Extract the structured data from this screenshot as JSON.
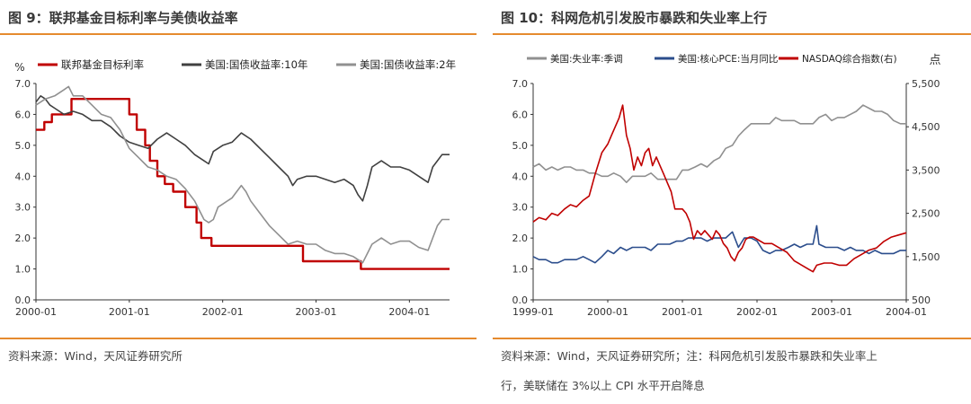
{
  "left": {
    "fig_title": "图 9：联邦基金目标利率与美债收益率",
    "source": "资料来源：Wind，天风证券研究所"
  },
  "right": {
    "fig_title": "图 10：科网危机引发股市暴跌和失业率上行",
    "source_line1": "资料来源：Wind，天风证券研究所；注：科网危机引发股市暴跌和失业率上",
    "source_line2": "行，美联储在 3%以上 CPI 水平开启降息"
  },
  "chart_data": [
    {
      "type": "line",
      "ylabel": "%",
      "ylim": [
        0,
        7
      ],
      "yticks": [
        "0.0",
        "1.0",
        "2.0",
        "3.0",
        "4.0",
        "5.0",
        "6.0",
        "7.0"
      ],
      "xlim": [
        2000.0,
        2004.43
      ],
      "xticks": [
        {
          "x": 2000,
          "label": "2000-01"
        },
        {
          "x": 2001,
          "label": "2001-01"
        },
        {
          "x": 2002,
          "label": "2002-01"
        },
        {
          "x": 2003,
          "label": "2003-01"
        },
        {
          "x": 2004,
          "label": "2004-01"
        }
      ],
      "legend_position": "top",
      "series": [
        {
          "name": "联邦基金目标利率",
          "color": "#c00000",
          "step": true,
          "x": [
            2000.0,
            2000.09,
            2000.17,
            2000.3,
            2000.38,
            2001.0,
            2001.08,
            2001.17,
            2001.22,
            2001.3,
            2001.38,
            2001.47,
            2001.6,
            2001.72,
            2001.77,
            2001.84,
            2001.88,
            2001.95,
            2002.86,
            2003.48,
            2004.43
          ],
          "y": [
            5.5,
            5.75,
            6.0,
            6.0,
            6.5,
            6.0,
            5.5,
            5.0,
            4.5,
            4.0,
            3.75,
            3.5,
            3.0,
            2.5,
            2.0,
            2.0,
            1.75,
            1.75,
            1.25,
            1.0,
            1.0
          ]
        },
        {
          "name": "美国:国债收益率:10年",
          "color": "#404040",
          "x": [
            2000.0,
            2000.05,
            2000.1,
            2000.15,
            2000.2,
            2000.3,
            2000.4,
            2000.5,
            2000.6,
            2000.7,
            2000.8,
            2000.9,
            2001.0,
            2001.1,
            2001.2,
            2001.3,
            2001.4,
            2001.5,
            2001.6,
            2001.7,
            2001.8,
            2001.85,
            2001.9,
            2002.0,
            2002.1,
            2002.2,
            2002.3,
            2002.4,
            2002.5,
            2002.6,
            2002.7,
            2002.75,
            2002.8,
            2002.9,
            2003.0,
            2003.1,
            2003.2,
            2003.3,
            2003.4,
            2003.45,
            2003.5,
            2003.55,
            2003.6,
            2003.7,
            2003.8,
            2003.9,
            2004.0,
            2004.1,
            2004.2,
            2004.25,
            2004.3,
            2004.35,
            2004.43
          ],
          "y": [
            6.4,
            6.6,
            6.5,
            6.3,
            6.2,
            6.0,
            6.1,
            6.0,
            5.8,
            5.8,
            5.6,
            5.3,
            5.1,
            5.0,
            4.9,
            5.2,
            5.4,
            5.2,
            5.0,
            4.7,
            4.5,
            4.4,
            4.8,
            5.0,
            5.1,
            5.4,
            5.2,
            4.9,
            4.6,
            4.3,
            4.0,
            3.7,
            3.9,
            4.0,
            4.0,
            3.9,
            3.8,
            3.9,
            3.7,
            3.4,
            3.2,
            3.7,
            4.3,
            4.5,
            4.3,
            4.3,
            4.2,
            4.0,
            3.8,
            4.3,
            4.5,
            4.7,
            4.7
          ]
        },
        {
          "name": "美国:国债收益率:2年",
          "color": "#909090",
          "x": [
            2000.0,
            2000.1,
            2000.2,
            2000.3,
            2000.35,
            2000.4,
            2000.5,
            2000.6,
            2000.7,
            2000.8,
            2000.9,
            2001.0,
            2001.1,
            2001.2,
            2001.3,
            2001.4,
            2001.5,
            2001.6,
            2001.7,
            2001.8,
            2001.85,
            2001.9,
            2001.95,
            2002.0,
            2002.1,
            2002.2,
            2002.25,
            2002.3,
            2002.4,
            2002.5,
            2002.6,
            2002.7,
            2002.8,
            2002.9,
            2003.0,
            2003.1,
            2003.2,
            2003.3,
            2003.4,
            2003.5,
            2003.55,
            2003.6,
            2003.7,
            2003.8,
            2003.9,
            2004.0,
            2004.1,
            2004.2,
            2004.25,
            2004.3,
            2004.35,
            2004.43
          ],
          "y": [
            6.3,
            6.5,
            6.6,
            6.8,
            6.9,
            6.6,
            6.6,
            6.3,
            6.0,
            5.9,
            5.5,
            4.9,
            4.6,
            4.3,
            4.2,
            4.0,
            3.9,
            3.6,
            3.2,
            2.6,
            2.5,
            2.6,
            3.0,
            3.1,
            3.3,
            3.7,
            3.5,
            3.2,
            2.8,
            2.4,
            2.1,
            1.8,
            1.9,
            1.8,
            1.8,
            1.6,
            1.5,
            1.5,
            1.4,
            1.2,
            1.5,
            1.8,
            2.0,
            1.8,
            1.9,
            1.9,
            1.7,
            1.6,
            2.0,
            2.4,
            2.6,
            2.6
          ]
        }
      ]
    },
    {
      "type": "line",
      "ylabel": "",
      "y2label": "点",
      "ylim": [
        0,
        7
      ],
      "yticks": [
        "0.0",
        "1.0",
        "2.0",
        "3.0",
        "4.0",
        "5.0",
        "6.0",
        "7.0"
      ],
      "y2lim": [
        500,
        5500
      ],
      "y2ticks": [
        "500",
        "1,500",
        "2,500",
        "3,500",
        "4,500",
        "5,500"
      ],
      "xlim": [
        1999.0,
        2004.0
      ],
      "xticks": [
        {
          "x": 1999,
          "label": "1999-01"
        },
        {
          "x": 2000,
          "label": "2000-01"
        },
        {
          "x": 2001,
          "label": "2001-01"
        },
        {
          "x": 2002,
          "label": "2002-01"
        },
        {
          "x": 2003,
          "label": "2003-01"
        },
        {
          "x": 2004,
          "label": "2004-01"
        }
      ],
      "legend_position": "top",
      "series": [
        {
          "name": "美国:失业率:季调",
          "color": "#909090",
          "axis": "left",
          "x": [
            1999.0,
            1999.08,
            1999.17,
            1999.25,
            1999.33,
            1999.42,
            1999.5,
            1999.58,
            1999.67,
            1999.75,
            1999.83,
            1999.92,
            2000.0,
            2000.08,
            2000.17,
            2000.25,
            2000.33,
            2000.42,
            2000.5,
            2000.58,
            2000.67,
            2000.75,
            2000.83,
            2000.92,
            2001.0,
            2001.08,
            2001.17,
            2001.25,
            2001.33,
            2001.42,
            2001.5,
            2001.58,
            2001.67,
            2001.75,
            2001.83,
            2001.92,
            2002.0,
            2002.08,
            2002.17,
            2002.25,
            2002.33,
            2002.42,
            2002.5,
            2002.58,
            2002.67,
            2002.75,
            2002.83,
            2002.92,
            2003.0,
            2003.08,
            2003.17,
            2003.25,
            2003.33,
            2003.42,
            2003.5,
            2003.58,
            2003.67,
            2003.75,
            2003.83,
            2003.92,
            2004.0
          ],
          "y": [
            4.3,
            4.4,
            4.2,
            4.3,
            4.2,
            4.3,
            4.3,
            4.2,
            4.2,
            4.1,
            4.1,
            4.0,
            4.0,
            4.1,
            4.0,
            3.8,
            4.0,
            4.0,
            4.0,
            4.1,
            3.9,
            3.9,
            3.9,
            3.9,
            4.2,
            4.2,
            4.3,
            4.4,
            4.3,
            4.5,
            4.6,
            4.9,
            5.0,
            5.3,
            5.5,
            5.7,
            5.7,
            5.7,
            5.7,
            5.9,
            5.8,
            5.8,
            5.8,
            5.7,
            5.7,
            5.7,
            5.9,
            6.0,
            5.8,
            5.9,
            5.9,
            6.0,
            6.1,
            6.3,
            6.2,
            6.1,
            6.1,
            6.0,
            5.8,
            5.7,
            5.7
          ]
        },
        {
          "name": "美国:核心PCE:当月同比",
          "color": "#2b4d8c",
          "axis": "left",
          "x": [
            1999.0,
            1999.08,
            1999.17,
            1999.25,
            1999.33,
            1999.42,
            1999.5,
            1999.58,
            1999.67,
            1999.75,
            1999.83,
            1999.92,
            2000.0,
            2000.08,
            2000.17,
            2000.25,
            2000.33,
            2000.42,
            2000.5,
            2000.58,
            2000.67,
            2000.75,
            2000.83,
            2000.92,
            2001.0,
            2001.08,
            2001.17,
            2001.25,
            2001.33,
            2001.42,
            2001.5,
            2001.58,
            2001.67,
            2001.75,
            2001.83,
            2001.92,
            2002.0,
            2002.08,
            2002.17,
            2002.25,
            2002.33,
            2002.42,
            2002.5,
            2002.58,
            2002.67,
            2002.75,
            2002.8,
            2002.83,
            2002.92,
            2003.0,
            2003.08,
            2003.17,
            2003.25,
            2003.33,
            2003.42,
            2003.5,
            2003.58,
            2003.67,
            2003.75,
            2003.83,
            2003.92,
            2004.0
          ],
          "y": [
            1.4,
            1.3,
            1.3,
            1.2,
            1.2,
            1.3,
            1.3,
            1.3,
            1.4,
            1.3,
            1.2,
            1.4,
            1.6,
            1.5,
            1.7,
            1.6,
            1.7,
            1.7,
            1.7,
            1.6,
            1.8,
            1.8,
            1.8,
            1.9,
            1.9,
            2.0,
            2.0,
            2.0,
            1.9,
            2.0,
            2.0,
            2.0,
            2.2,
            1.7,
            2.0,
            2.0,
            1.9,
            1.6,
            1.5,
            1.6,
            1.6,
            1.7,
            1.8,
            1.7,
            1.8,
            1.8,
            2.4,
            1.8,
            1.7,
            1.7,
            1.7,
            1.6,
            1.7,
            1.6,
            1.6,
            1.5,
            1.6,
            1.5,
            1.5,
            1.5,
            1.6,
            1.6
          ]
        },
        {
          "name": "NASDAQ综合指数(右)",
          "color": "#c00000",
          "axis": "right",
          "x": [
            1999.0,
            1999.08,
            1999.17,
            1999.25,
            1999.33,
            1999.42,
            1999.5,
            1999.58,
            1999.67,
            1999.75,
            1999.83,
            1999.92,
            2000.0,
            2000.05,
            2000.1,
            2000.15,
            2000.2,
            2000.25,
            2000.3,
            2000.35,
            2000.4,
            2000.45,
            2000.5,
            2000.55,
            2000.6,
            2000.65,
            2000.7,
            2000.75,
            2000.8,
            2000.85,
            2000.9,
            2000.95,
            2001.0,
            2001.05,
            2001.1,
            2001.15,
            2001.2,
            2001.25,
            2001.3,
            2001.35,
            2001.4,
            2001.45,
            2001.5,
            2001.55,
            2001.6,
            2001.65,
            2001.7,
            2001.75,
            2001.8,
            2001.85,
            2001.9,
            2001.95,
            2002.0,
            2002.1,
            2002.2,
            2002.3,
            2002.4,
            2002.5,
            2002.6,
            2002.7,
            2002.75,
            2002.8,
            2002.9,
            2003.0,
            2003.1,
            2003.2,
            2003.3,
            2003.4,
            2003.5,
            2003.6,
            2003.7,
            2003.8,
            2003.9,
            2004.0
          ],
          "y": [
            2300,
            2400,
            2350,
            2500,
            2450,
            2600,
            2700,
            2650,
            2800,
            2900,
            3400,
            3900,
            4100,
            4300,
            4500,
            4700,
            5000,
            4300,
            4000,
            3500,
            3800,
            3600,
            3900,
            4000,
            3600,
            3800,
            3600,
            3400,
            3200,
            3000,
            2600,
            2600,
            2600,
            2500,
            2300,
            1900,
            2100,
            2000,
            2100,
            2000,
            1900,
            2100,
            2000,
            1800,
            1700,
            1500,
            1400,
            1600,
            1700,
            1900,
            1950,
            1950,
            1900,
            1800,
            1800,
            1700,
            1600,
            1400,
            1300,
            1200,
            1150,
            1300,
            1350,
            1350,
            1300,
            1300,
            1450,
            1550,
            1650,
            1700,
            1850,
            1950,
            2000,
            2050
          ]
        }
      ]
    }
  ]
}
